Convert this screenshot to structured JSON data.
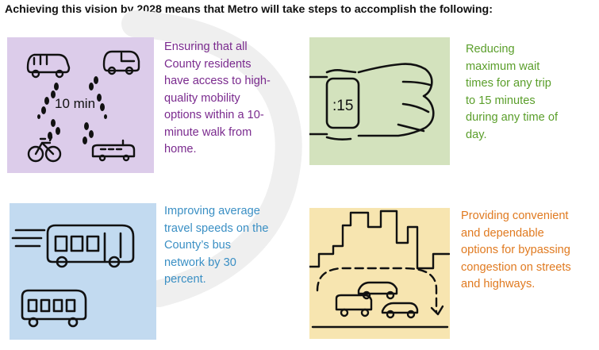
{
  "heading": "Achieving this vision by 2028 means that Metro will take steps to accomplish the following:",
  "colors": {
    "purple_text": "#7a2a8e",
    "green_text": "#5a9e2a",
    "blue_text": "#3a8fc4",
    "orange_text": "#e07a20",
    "purple_panel": "#dcccea",
    "green_panel": "#d3e2bd",
    "blue_panel": "#c2daf0",
    "orange_panel": "#f7e5b0"
  },
  "items": [
    {
      "text": "Ensuring that all County residents have access to high-quality mobility options within a 10-minute walk from home.",
      "lines": [
        "Ensuring that all",
        "County residents",
        "have access to high-",
        "quality mobility",
        "options within a 10-",
        "minute walk from",
        "home."
      ],
      "illustration": "walking-footprints-10min",
      "illustration_text": "10 min"
    },
    {
      "text": "Reducing maximum wait times for any trip to 15 minutes during any time of day.",
      "lines": [
        "Reducing",
        "maximum wait",
        "times for any trip",
        "to 15 minutes",
        "during any time of",
        "day."
      ],
      "illustration": "wristwatch",
      "illustration_text": ":15"
    },
    {
      "text": "Improving average travel speeds on the County's bus network by 30 percent.",
      "lines": [
        "Improving average",
        "travel speeds on the",
        "County’s bus",
        "network by 30",
        "percent."
      ],
      "illustration": "moving-buses"
    },
    {
      "text": "Providing convenient and dependable options for bypassing congestion on streets and highways.",
      "lines": [
        "Providing convenient",
        "and dependable",
        "options for bypassing",
        "congestion on streets",
        "and highways."
      ],
      "illustration": "bus-bypassing-traffic"
    }
  ]
}
